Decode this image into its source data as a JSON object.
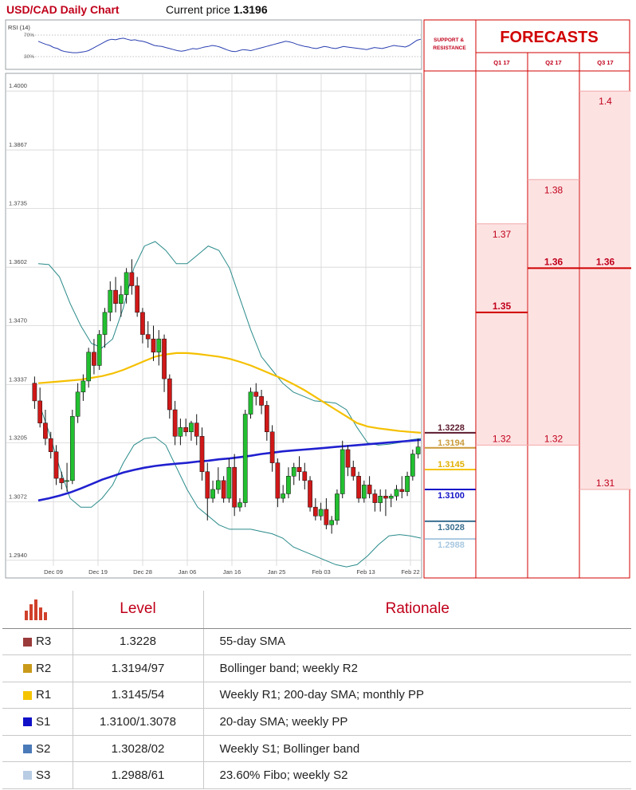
{
  "header": {
    "title": "USD/CAD Daily Chart",
    "price_label": "Current price",
    "price_value": "1.3196"
  },
  "rsi": {
    "label": "RSI (14)",
    "level_top": "70%",
    "level_bottom": "30%",
    "values": [
      58,
      55,
      52,
      50,
      46,
      44,
      40,
      38,
      37,
      36,
      36,
      37,
      38,
      40,
      44,
      48,
      52,
      56,
      60,
      62,
      61,
      63,
      64,
      62,
      60,
      61,
      59,
      58,
      56,
      53,
      50,
      49,
      48,
      46,
      44,
      42,
      40,
      39,
      40,
      42,
      44,
      43,
      45,
      47,
      48,
      50,
      49,
      47,
      44,
      41,
      39,
      38,
      40,
      42,
      41,
      40,
      42,
      44,
      46,
      48,
      50,
      52,
      54,
      56,
      58,
      57,
      55,
      52,
      50,
      48,
      47,
      45,
      44,
      46,
      48,
      47,
      45,
      44,
      46,
      48,
      47,
      46,
      45,
      44,
      43,
      42,
      44,
      46,
      45,
      44,
      46,
      48,
      50,
      49,
      48,
      47,
      50,
      55,
      60,
      62
    ]
  },
  "support_resistance": {
    "title": "SUPPORT & RESISTANCE",
    "levels": [
      {
        "value": "1.3228",
        "color": "#5c1a2e",
        "text_color": "#5c1a2e"
      },
      {
        "value": "1.3194",
        "color": "#c99a3a",
        "text_color": "#c99a3a"
      },
      {
        "value": "1.3145",
        "color": "#f5c400",
        "text_color": "#e0b000"
      },
      {
        "value": "1.3100",
        "color": "#1010c8",
        "text_color": "#1010c8"
      },
      {
        "value": "1.3028",
        "color": "#3a6f8f",
        "text_color": "#3a6f8f"
      },
      {
        "value": "1.2988",
        "color": "#a8c8e0",
        "text_color": "#a8c8e0"
      }
    ]
  },
  "forecasts": {
    "title": "FORECASTS",
    "columns": [
      {
        "label": "Q1 17",
        "high": "1.37",
        "mid": "1.35",
        "low": "1.32"
      },
      {
        "label": "Q2 17",
        "high": "1.38",
        "mid": "1.36",
        "low": "1.32"
      },
      {
        "label": "Q3 17",
        "high": "1.4",
        "mid": "1.36",
        "low": "1.31"
      }
    ]
  },
  "table": {
    "level_header": "Level",
    "rationale_header": "Rationale",
    "rows": [
      {
        "code": "R3",
        "color": "#9b3a3a",
        "level": "1.3228",
        "rationale": "55-day SMA"
      },
      {
        "code": "R2",
        "color": "#c99a1a",
        "level": "1.3194/97",
        "rationale": "Bollinger band; weekly R2"
      },
      {
        "code": "R1",
        "color": "#f5c400",
        "level": "1.3145/54",
        "rationale": "Weekly R1; 200-day SMA; monthly PP"
      },
      {
        "code": "S1",
        "color": "#1010c8",
        "level": "1.3100/1.3078",
        "rationale": "20-day SMA; weekly PP"
      },
      {
        "code": "S2",
        "color": "#4a7ab8",
        "level": "1.3028/02",
        "rationale": "Weekly S1; Bollinger band"
      },
      {
        "code": "S3",
        "color": "#b8cce4",
        "level": "1.2988/61",
        "rationale": "23.60% Fibo; weekly S2"
      }
    ]
  },
  "chart_data": {
    "type": "candlestick",
    "title": "USD/CAD Daily Chart",
    "ylim": [
      1.29,
      1.404
    ],
    "y_ticks": [
      "1.4000",
      "1.3867",
      "1.3735",
      "1.3602",
      "1.3470",
      "1.3337",
      "1.3205",
      "1.3072",
      "1.2940"
    ],
    "x_ticks": [
      "Dec 09",
      "Dec 19",
      "Dec 28",
      "Jan 06",
      "Jan 16",
      "Jan 25",
      "Feb 03",
      "Feb 13",
      "Feb 22"
    ],
    "grid": true,
    "candles": [
      [
        1.334,
        1.3355,
        1.3282,
        1.33
      ],
      [
        1.33,
        1.333,
        1.324,
        1.325
      ],
      [
        1.325,
        1.328,
        1.32,
        1.3215
      ],
      [
        1.3215,
        1.323,
        1.317,
        1.3185
      ],
      [
        1.3185,
        1.32,
        1.311,
        1.3125
      ],
      [
        1.3125,
        1.314,
        1.31,
        1.3115
      ],
      [
        1.3118,
        1.316,
        1.3095,
        1.312
      ],
      [
        1.312,
        1.328,
        1.3112,
        1.3265
      ],
      [
        1.3265,
        1.334,
        1.325,
        1.332
      ],
      [
        1.332,
        1.336,
        1.33,
        1.3345
      ],
      [
        1.3345,
        1.342,
        1.333,
        1.341
      ],
      [
        1.341,
        1.344,
        1.336,
        1.338
      ],
      [
        1.338,
        1.346,
        1.337,
        1.345
      ],
      [
        1.345,
        1.351,
        1.342,
        1.35
      ],
      [
        1.35,
        1.357,
        1.348,
        1.355
      ],
      [
        1.355,
        1.358,
        1.35,
        1.352
      ],
      [
        1.352,
        1.356,
        1.349,
        1.354
      ],
      [
        1.354,
        1.36,
        1.352,
        1.359
      ],
      [
        1.359,
        1.362,
        1.354,
        1.356
      ],
      [
        1.356,
        1.358,
        1.349,
        1.35
      ],
      [
        1.35,
        1.351,
        1.343,
        1.345
      ],
      [
        1.345,
        1.348,
        1.342,
        1.344
      ],
      [
        1.344,
        1.347,
        1.339,
        1.341
      ],
      [
        1.341,
        1.346,
        1.338,
        1.344
      ],
      [
        1.344,
        1.345,
        1.332,
        1.335
      ],
      [
        1.335,
        1.336,
        1.326,
        1.328
      ],
      [
        1.328,
        1.33,
        1.32,
        1.322
      ],
      [
        1.322,
        1.326,
        1.32,
        1.324
      ],
      [
        1.324,
        1.326,
        1.322,
        1.323
      ],
      [
        1.323,
        1.3255,
        1.321,
        1.325
      ],
      [
        1.325,
        1.327,
        1.32,
        1.322
      ],
      [
        1.322,
        1.324,
        1.312,
        1.314
      ],
      [
        1.314,
        1.316,
        1.303,
        1.308
      ],
      [
        1.308,
        1.312,
        1.307,
        1.31
      ],
      [
        1.31,
        1.315,
        1.309,
        1.312
      ],
      [
        1.312,
        1.313,
        1.307,
        1.308
      ],
      [
        1.308,
        1.317,
        1.307,
        1.315
      ],
      [
        1.315,
        1.318,
        1.304,
        1.306
      ],
      [
        1.306,
        1.308,
        1.305,
        1.307
      ],
      [
        1.307,
        1.328,
        1.306,
        1.327
      ],
      [
        1.327,
        1.333,
        1.326,
        1.332
      ],
      [
        1.332,
        1.334,
        1.329,
        1.331
      ],
      [
        1.331,
        1.3325,
        1.327,
        1.329
      ],
      [
        1.329,
        1.33,
        1.321,
        1.323
      ],
      [
        1.323,
        1.3245,
        1.314,
        1.316
      ],
      [
        1.316,
        1.317,
        1.306,
        1.308
      ],
      [
        1.308,
        1.311,
        1.307,
        1.309
      ],
      [
        1.309,
        1.315,
        1.308,
        1.313
      ],
      [
        1.313,
        1.316,
        1.311,
        1.315
      ],
      [
        1.315,
        1.3175,
        1.312,
        1.314
      ],
      [
        1.314,
        1.316,
        1.31,
        1.312
      ],
      [
        1.312,
        1.313,
        1.305,
        1.306
      ],
      [
        1.306,
        1.308,
        1.303,
        1.304
      ],
      [
        1.304,
        1.307,
        1.303,
        1.3055
      ],
      [
        1.3055,
        1.308,
        1.301,
        1.302
      ],
      [
        1.302,
        1.304,
        1.3,
        1.303
      ],
      [
        1.303,
        1.31,
        1.302,
        1.309
      ],
      [
        1.309,
        1.321,
        1.308,
        1.319
      ],
      [
        1.319,
        1.32,
        1.313,
        1.315
      ],
      [
        1.315,
        1.3165,
        1.312,
        1.313
      ],
      [
        1.313,
        1.314,
        1.307,
        1.308
      ],
      [
        1.308,
        1.312,
        1.307,
        1.311
      ],
      [
        1.311,
        1.313,
        1.308,
        1.309
      ],
      [
        1.309,
        1.31,
        1.305,
        1.307
      ],
      [
        1.307,
        1.31,
        1.305,
        1.3085
      ],
      [
        1.3085,
        1.31,
        1.304,
        1.308
      ],
      [
        1.308,
        1.309,
        1.306,
        1.3085
      ],
      [
        1.3085,
        1.311,
        1.3075,
        1.31
      ],
      [
        1.31,
        1.313,
        1.308,
        1.3095
      ],
      [
        1.3095,
        1.314,
        1.3085,
        1.313
      ],
      [
        1.313,
        1.319,
        1.312,
        1.318
      ],
      [
        1.318,
        1.3215,
        1.317,
        1.3196
      ]
    ],
    "sma55": [
      1.334,
      1.3342,
      1.3344,
      1.3346,
      1.3348,
      1.3352,
      1.3356,
      1.3362,
      1.337,
      1.338,
      1.339,
      1.34,
      1.3405,
      1.3408,
      1.3408,
      1.3406,
      1.3403,
      1.34,
      1.3395,
      1.3388,
      1.338,
      1.337,
      1.336,
      1.335,
      1.3338,
      1.3325,
      1.331,
      1.3295,
      1.328,
      1.3265,
      1.325,
      1.3242,
      1.3238,
      1.3235,
      1.3232,
      1.323,
      1.3228
    ],
    "sma200": [
      1.3075,
      1.308,
      1.3086,
      1.3093,
      1.3102,
      1.3112,
      1.3122,
      1.313,
      1.3138,
      1.3144,
      1.3149,
      1.3153,
      1.3156,
      1.3158,
      1.316,
      1.3163,
      1.3165,
      1.3168,
      1.317,
      1.3173,
      1.3176,
      1.318,
      1.3183,
      1.3186,
      1.3188,
      1.319,
      1.3192,
      1.3194,
      1.3196,
      1.3198,
      1.32,
      1.3202,
      1.3204,
      1.3206,
      1.3208,
      1.321,
      1.3212
    ],
    "bb_upper": [
      1.361,
      1.3608,
      1.358,
      1.352,
      1.347,
      1.343,
      1.342,
      1.344,
      1.351,
      1.36,
      1.365,
      1.366,
      1.364,
      1.361,
      1.361,
      1.363,
      1.365,
      1.364,
      1.36,
      1.353,
      1.346,
      1.34,
      1.337,
      1.334,
      1.332,
      1.331,
      1.33,
      1.3298,
      1.3295,
      1.328,
      1.324,
      1.3205,
      1.32,
      1.3202,
      1.3206,
      1.3212,
      1.3215
    ],
    "bb_lower": [
      1.33,
      1.323,
      1.315,
      1.308,
      1.306,
      1.306,
      1.308,
      1.311,
      1.316,
      1.32,
      1.3215,
      1.3218,
      1.32,
      1.315,
      1.31,
      1.306,
      1.304,
      1.302,
      1.301,
      1.301,
      1.301,
      1.3005,
      1.3,
      1.299,
      1.297,
      1.296,
      1.295,
      1.294,
      1.293,
      1.2925,
      1.293,
      1.295,
      1.2975,
      1.2995,
      1.2998,
      1.2995,
      1.299
    ]
  }
}
